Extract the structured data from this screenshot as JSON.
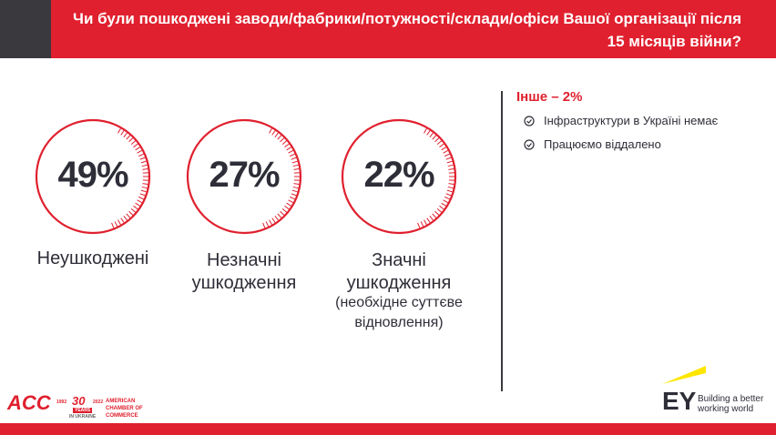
{
  "header": {
    "title": "Чи були пошкоджені заводи/фабрики/потужності/склади/офіси Вашої організації після 15 місяців війни?"
  },
  "items": [
    {
      "value": "49%",
      "label": "Неушкоджені"
    },
    {
      "value": "27%",
      "label": "Незначні ушкодження"
    },
    {
      "value": "22%",
      "label": "Значні ушкодження",
      "note": "(необхідне суттєве відновлення)"
    }
  ],
  "other": {
    "title": "Інше – 2%",
    "items": [
      "Інфраструктури в Україні немає",
      "Працюємо віддалено"
    ]
  },
  "footer": {
    "acc": "ACC",
    "years": "30",
    "years_label": "YEARS",
    "start": "1992",
    "end": "2022",
    "country": "IN UKRAINE",
    "amcham": "AMERICAN CHAMBER OF COMMERCE",
    "ey": "EY",
    "ey_tagline": "Building a better working world"
  }
}
